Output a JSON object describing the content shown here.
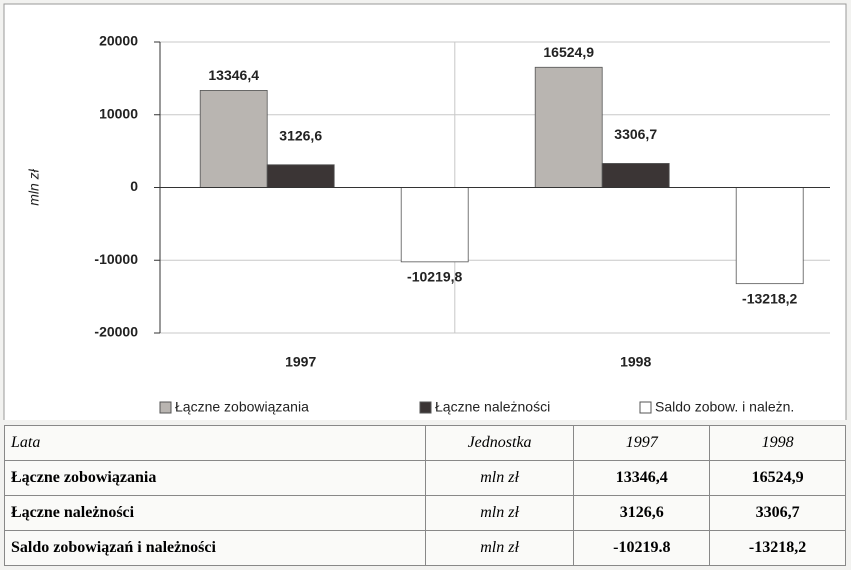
{
  "chart_data": {
    "type": "bar",
    "categories": [
      "1997",
      "1998"
    ],
    "y_label": "mln zł",
    "series": [
      {
        "name": "Łączne zobowiązania",
        "color": "#b9b5b1",
        "values": [
          13346.4,
          16524.9
        ],
        "value_labels": [
          "13346,4",
          "16524,9"
        ]
      },
      {
        "name": "Łączne należności",
        "color": "#3b3535",
        "values": [
          3126.6,
          3306.7
        ],
        "value_labels": [
          "3126,6",
          "3306,7"
        ]
      },
      {
        "name": "Saldo zobow. i należn.",
        "color": "#ffffff",
        "values": [
          -10219.8,
          -13218.2
        ],
        "value_labels": [
          "-10219,8",
          "-13218,2"
        ]
      }
    ],
    "ylim": [
      -20000,
      20000
    ],
    "yticks": [
      -20000,
      -10000,
      0,
      10000,
      20000
    ],
    "grid": true
  },
  "table": {
    "header": [
      "Lata",
      "Jednostka",
      "1997",
      "1998"
    ],
    "rows": [
      [
        "Łączne zobowiązania",
        "mln zł",
        "13346,4",
        "16524,9"
      ],
      [
        "Łączne należności",
        "mln zł",
        "3126,6",
        "3306,7"
      ],
      [
        "Saldo zobowiązań i należności",
        "mln zł",
        "-10219.8",
        "-13218,2"
      ]
    ]
  }
}
